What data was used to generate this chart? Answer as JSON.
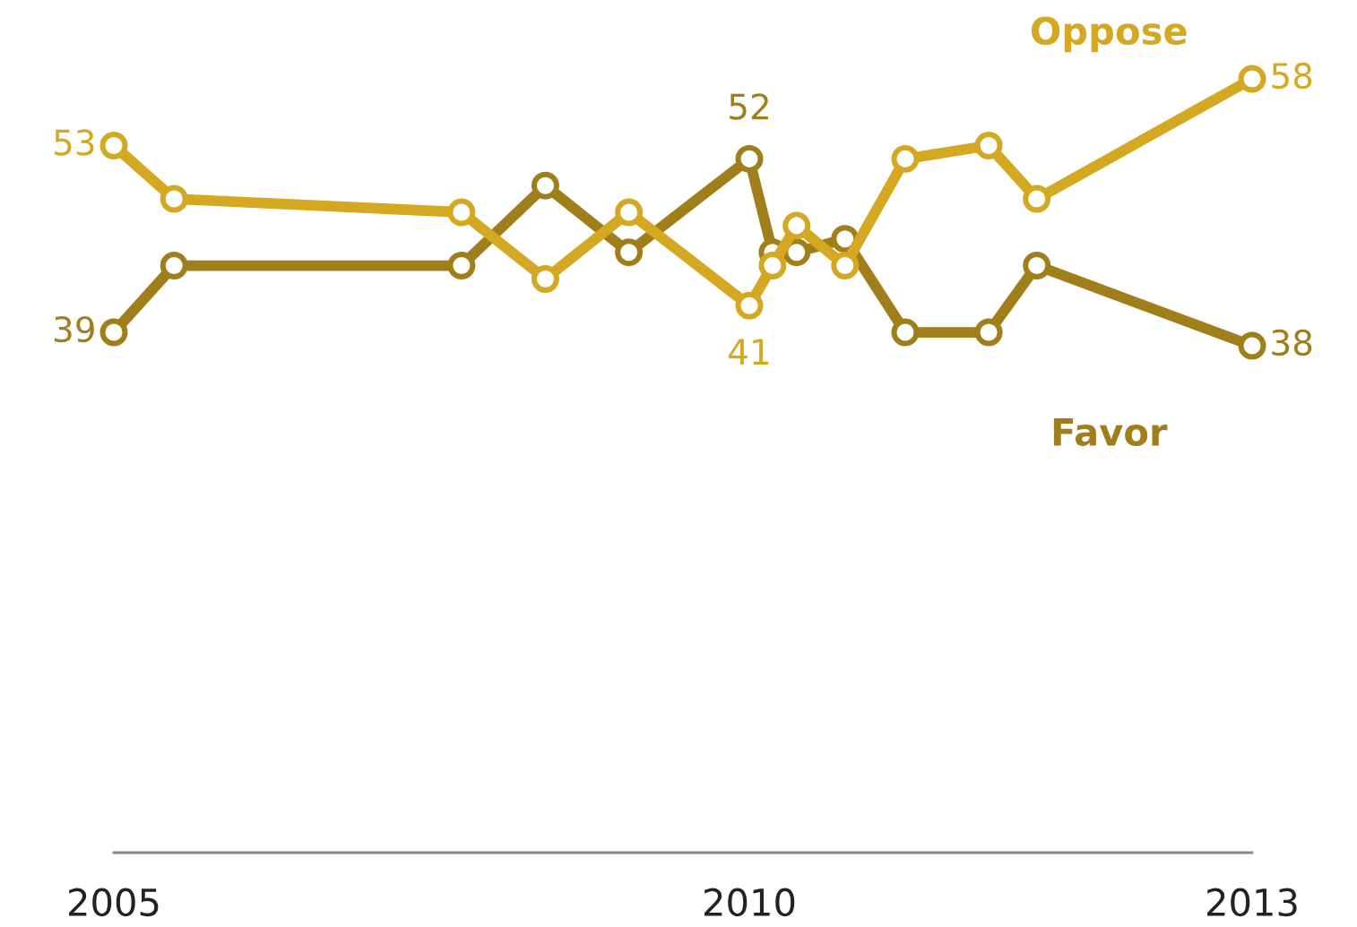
{
  "chart_data": {
    "type": "line",
    "x": [
      "2005-08",
      "2006-01",
      "2008-01",
      "2008-08",
      "2009-03",
      "2010-01",
      "2010-03",
      "2010-05",
      "2010-09",
      "2011-02",
      "2011-09",
      "2012-01",
      "2013-07"
    ],
    "xlim": [
      "2005-08",
      "2013-07"
    ],
    "xticks": [
      {
        "value": "2005-08",
        "label": "2005"
      },
      {
        "value": "2010-01",
        "label": "2010"
      },
      {
        "value": "2013-07",
        "label": "2013"
      }
    ],
    "tick_labels": "x",
    "grid": false,
    "legend": false,
    "marker": "circle",
    "line_style": "solid",
    "series": [
      {
        "name": "Oppose",
        "color": "#d4a820",
        "values": [
          53,
          49,
          48,
          43,
          48,
          41,
          44,
          47,
          44,
          52,
          53,
          49,
          58
        ],
        "value_labels": [
          "53",
          null,
          null,
          null,
          null,
          "41",
          null,
          null,
          null,
          null,
          null,
          null,
          "58"
        ]
      },
      {
        "name": "Favor",
        "color": "#a07f1a",
        "values": [
          39,
          44,
          44,
          50,
          45,
          52,
          45,
          45,
          46,
          39,
          39,
          44,
          38
        ],
        "value_labels": [
          "39",
          null,
          null,
          null,
          null,
          "52",
          null,
          null,
          null,
          null,
          null,
          null,
          "38"
        ]
      }
    ]
  }
}
